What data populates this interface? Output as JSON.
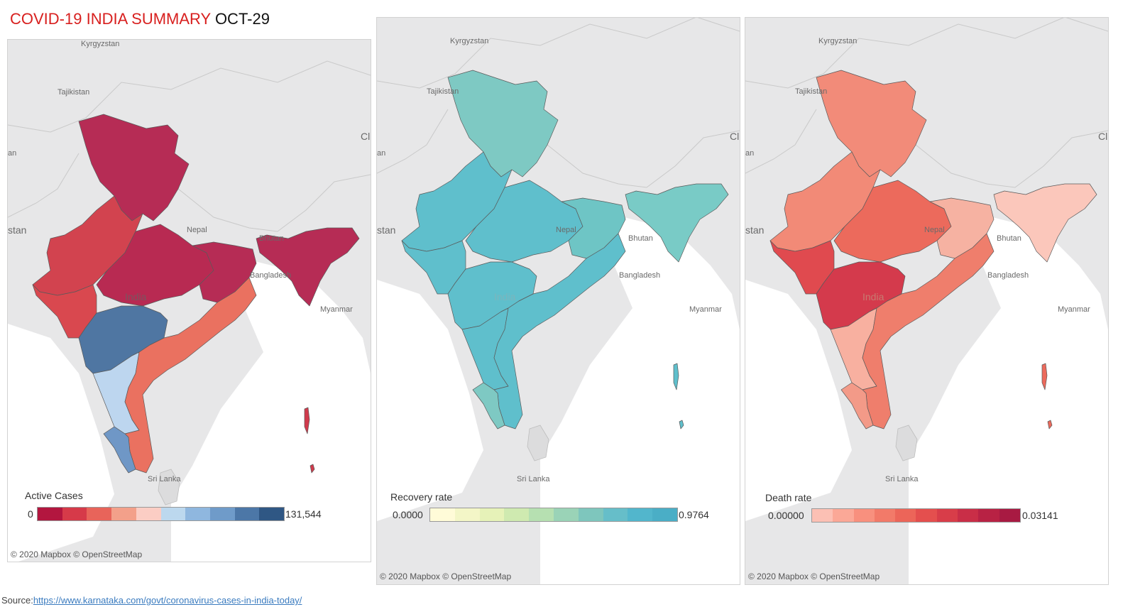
{
  "title": {
    "part1": "COVID-19 INDIA SUMMARY",
    "part2": "OCT-29"
  },
  "map_labels": {
    "kyrgyzstan": "Kyrgyzstan",
    "tajikistan": "Tajikistan",
    "stan": "stan",
    "an": "an",
    "ci": "Cl",
    "nepal": "Nepal",
    "bhutan": "Bhutan",
    "bangladesh": "Bangladesh",
    "myanmar": "Myanmar",
    "india": "India",
    "srilanka": "Sri Lanka"
  },
  "copyright": "© 2020 Mapbox © OpenStreetMap",
  "panels": [
    {
      "legend_title": "Active Cases",
      "min": "0",
      "max": "131,544",
      "colors": [
        "#b3163f",
        "#d63a49",
        "#e8645a",
        "#f3a08a",
        "#fbcdc4",
        "#bcd8ee",
        "#8fb7df",
        "#6f9bc9",
        "#4c77a7",
        "#2f5784"
      ],
      "regions": {
        "north": "#b62c55",
        "northwest": "#d2434f",
        "central": "#b82a52",
        "east": "#b62c55",
        "ne": "#b62c55",
        "west": "#d9484f",
        "maharashtra": "#4f76a2",
        "karnataka": "#bdd6ef",
        "south": "#ea7160",
        "kerala": "#6f97c6",
        "island": "#d03a4c"
      }
    },
    {
      "legend_title": "Recovery rate",
      "min": "0.0000",
      "max": "0.9764",
      "colors": [
        "#fffbd8",
        "#f3f6c7",
        "#e6f2b8",
        "#cfeab0",
        "#b6e0b1",
        "#9ad3b7",
        "#7ec6bd",
        "#66bec9",
        "#52b6cc",
        "#4aaec6"
      ],
      "regions": {
        "north": "#7ec9c3",
        "northwest": "#5fbfcc",
        "central": "#5fbfcc",
        "east": "#6ec5c5",
        "ne": "#79cbc6",
        "west": "#5fbfcc",
        "maharashtra": "#5fbfcc",
        "karnataka": "#5fbfcc",
        "south": "#5fbfcc",
        "kerala": "#7ec9c3",
        "island": "#5fbfcc"
      }
    },
    {
      "legend_title": "Death rate",
      "min": "0.00000",
      "max": "0.03141",
      "colors": [
        "#fcc0b4",
        "#fba897",
        "#f8907e",
        "#f27a69",
        "#ec6559",
        "#e44f4e",
        "#d83d49",
        "#c92e47",
        "#b82244",
        "#a81a42"
      ],
      "regions": {
        "north": "#f28b79",
        "northwest": "#f28a77",
        "central": "#ec6a5c",
        "east": "#f6b2a2",
        "ne": "#fbc7bb",
        "west": "#e04a4f",
        "maharashtra": "#d43a4c",
        "karnataka": "#f8b0a0",
        "south": "#ef7e6c",
        "kerala": "#f39a88",
        "island": "#ec6a5c"
      }
    }
  ],
  "source": {
    "label": "Source:",
    "url": "https://www.karnataka.com/govt/coronavirus-cases-in-india-today/"
  }
}
